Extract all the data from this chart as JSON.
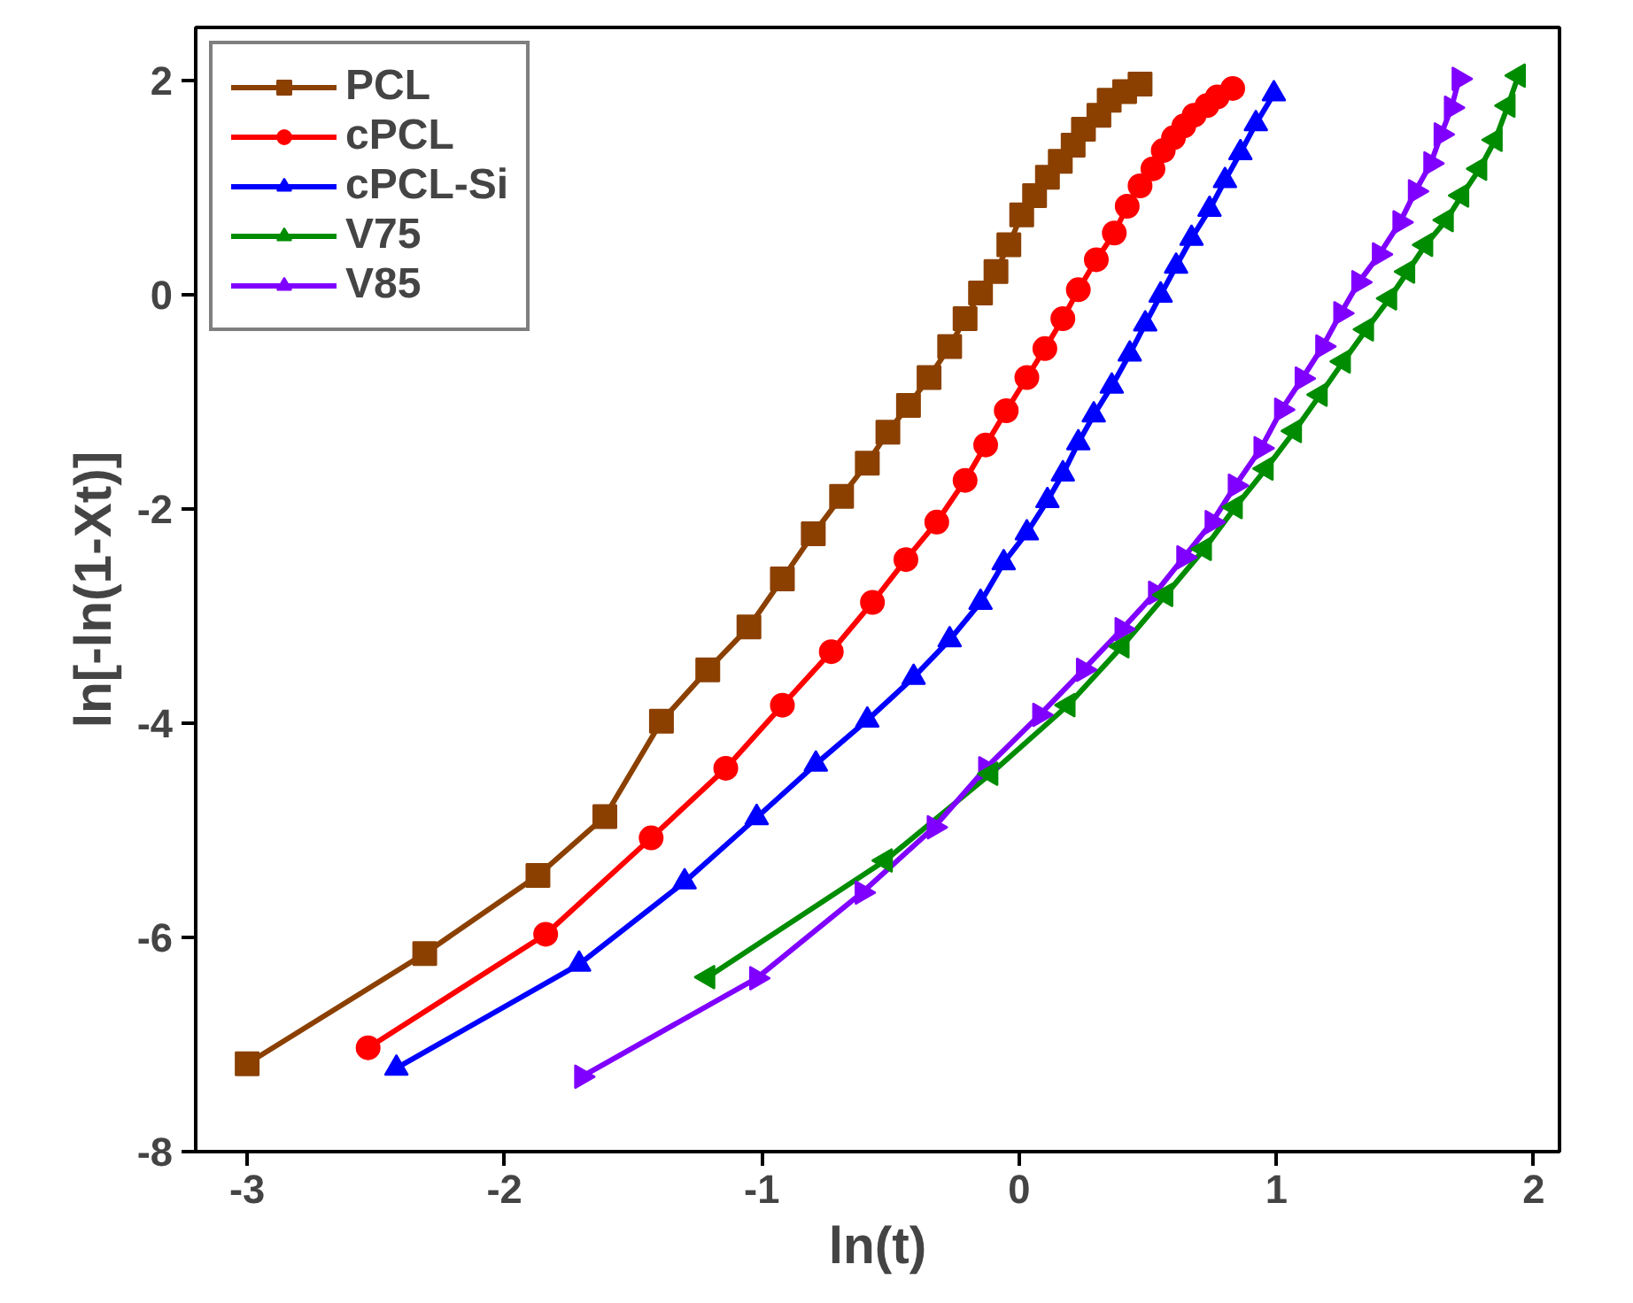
{
  "chart_data": {
    "type": "line",
    "xlabel": "ln(t)",
    "ylabel": "ln[-ln(1-Xt)]",
    "xlim": [
      -3.2,
      2.1
    ],
    "xticks": [
      -3,
      -2,
      -1,
      0,
      1,
      2
    ],
    "ylim": [
      -8,
      2.5
    ],
    "yticks": [
      -8,
      -6,
      -4,
      -2,
      0,
      2
    ],
    "grid": false,
    "legend": "top left",
    "line_style": "solid",
    "series": [
      {
        "name": "PCL",
        "color": "#8b4000",
        "marker": "square",
        "x": [
          -3.0,
          -2.31,
          -1.87,
          -1.61,
          -1.39,
          -1.21,
          -1.05,
          -0.92,
          -0.8,
          -0.69,
          -0.59,
          -0.51,
          -0.43,
          -0.35,
          -0.27,
          -0.21,
          -0.15,
          -0.09,
          -0.04,
          0.01,
          0.06,
          0.11,
          0.16,
          0.21,
          0.25,
          0.31,
          0.35,
          0.41,
          0.47
        ],
        "values": [
          -7.18,
          -6.15,
          -5.42,
          -4.87,
          -3.98,
          -3.5,
          -3.1,
          -2.65,
          -2.23,
          -1.88,
          -1.57,
          -1.28,
          -1.03,
          -0.77,
          -0.48,
          -0.22,
          0.02,
          0.22,
          0.47,
          0.75,
          0.93,
          1.1,
          1.25,
          1.4,
          1.55,
          1.68,
          1.82,
          1.9,
          1.97
        ]
      },
      {
        "name": "cPCL",
        "color": "#ff0000",
        "marker": "circle",
        "x": [
          -2.53,
          -1.84,
          -1.43,
          -1.14,
          -0.92,
          -0.73,
          -0.57,
          -0.44,
          -0.32,
          -0.21,
          -0.13,
          -0.05,
          0.03,
          0.1,
          0.17,
          0.23,
          0.3,
          0.37,
          0.42,
          0.47,
          0.52,
          0.56,
          0.6,
          0.64,
          0.68,
          0.73,
          0.77,
          0.83
        ],
        "values": [
          -7.03,
          -5.97,
          -5.07,
          -4.42,
          -3.83,
          -3.33,
          -2.87,
          -2.47,
          -2.12,
          -1.73,
          -1.4,
          -1.08,
          -0.77,
          -0.5,
          -0.22,
          0.05,
          0.33,
          0.58,
          0.83,
          1.02,
          1.18,
          1.35,
          1.47,
          1.58,
          1.68,
          1.77,
          1.85,
          1.93
        ]
      },
      {
        "name": "cPCL-Si",
        "color": "#0000ff",
        "marker": "triangle",
        "x": [
          -2.42,
          -1.71,
          -1.3,
          -1.02,
          -0.79,
          -0.59,
          -0.41,
          -0.27,
          -0.15,
          -0.06,
          0.03,
          0.11,
          0.17,
          0.23,
          0.29,
          0.36,
          0.43,
          0.49,
          0.55,
          0.61,
          0.67,
          0.74,
          0.8,
          0.86,
          0.92,
          0.99
        ],
        "values": [
          -7.22,
          -6.25,
          -5.48,
          -4.88,
          -4.38,
          -3.97,
          -3.57,
          -3.22,
          -2.87,
          -2.5,
          -2.22,
          -1.92,
          -1.67,
          -1.38,
          -1.12,
          -0.85,
          -0.55,
          -0.27,
          0.0,
          0.27,
          0.53,
          0.8,
          1.07,
          1.33,
          1.6,
          1.88
        ]
      },
      {
        "name": "V75",
        "color": "#008c00",
        "marker": "triangle_left",
        "x": [
          -1.21,
          -0.52,
          -0.11,
          0.19,
          0.4,
          0.57,
          0.72,
          0.84,
          0.96,
          1.07,
          1.17,
          1.26,
          1.35,
          1.44,
          1.51,
          1.58,
          1.66,
          1.72,
          1.79,
          1.85,
          1.9,
          1.94
        ],
        "values": [
          -6.37,
          -5.28,
          -4.47,
          -3.83,
          -3.28,
          -2.8,
          -2.37,
          -1.98,
          -1.62,
          -1.27,
          -0.93,
          -0.62,
          -0.32,
          -0.03,
          0.22,
          0.47,
          0.7,
          0.93,
          1.18,
          1.45,
          1.77,
          2.05
        ]
      },
      {
        "name": "V85",
        "color": "#8000ff",
        "marker": "triangle_right",
        "x": [
          -1.7,
          -1.02,
          -0.61,
          -0.33,
          -0.13,
          0.08,
          0.25,
          0.4,
          0.53,
          0.64,
          0.75,
          0.84,
          0.94,
          1.02,
          1.1,
          1.18,
          1.25,
          1.32,
          1.4,
          1.48,
          1.54,
          1.6,
          1.64,
          1.68,
          1.71
        ],
        "values": [
          -7.3,
          -6.38,
          -5.58,
          -4.97,
          -4.42,
          -3.92,
          -3.5,
          -3.12,
          -2.78,
          -2.45,
          -2.12,
          -1.78,
          -1.43,
          -1.07,
          -0.78,
          -0.48,
          -0.17,
          0.12,
          0.38,
          0.68,
          0.97,
          1.23,
          1.5,
          1.75,
          2.02
        ]
      }
    ]
  }
}
